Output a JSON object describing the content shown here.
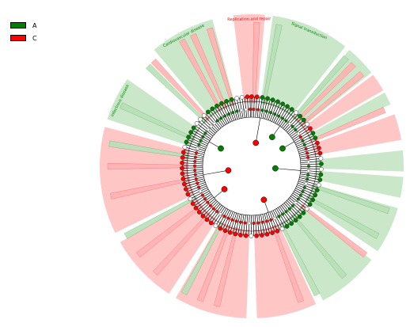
{
  "legend": [
    {
      "label": "A",
      "color": "#008000"
    },
    {
      "label": "C",
      "color": "#ff0000"
    }
  ],
  "colors": {
    "A": "#008000",
    "C": "#ff0000",
    "A_fill": "#b8dfb8",
    "C_fill": "#ffb3b3"
  },
  "sectors": [
    {
      "group": "C",
      "start": -7,
      "end": 5,
      "label": "Replication and repair"
    },
    {
      "group": "A",
      "start": 8,
      "end": 38,
      "label": "Signal transduction"
    },
    {
      "group": "A",
      "start": 40,
      "end": 52,
      "label": ""
    },
    {
      "group": "C",
      "start": 53,
      "end": 60,
      "label": ""
    },
    {
      "group": "A",
      "start": 61,
      "end": 66,
      "label": ""
    },
    {
      "group": "C",
      "start": 70,
      "end": 80,
      "label": ""
    },
    {
      "group": "A",
      "start": 84,
      "end": 92,
      "label": ""
    },
    {
      "group": "A",
      "start": 94,
      "end": 102,
      "label": ""
    },
    {
      "group": "A",
      "start": 106,
      "end": 124,
      "label": ""
    },
    {
      "group": "A",
      "start": 128,
      "end": 152,
      "label": ""
    },
    {
      "group": "C",
      "start": 155,
      "end": 178,
      "label": ""
    },
    {
      "group": "C",
      "start": 182,
      "end": 210,
      "label": ""
    },
    {
      "group": "C",
      "start": 213,
      "end": 240,
      "label": ""
    },
    {
      "group": "C",
      "start": 244,
      "end": 285,
      "label": ""
    },
    {
      "group": "A",
      "start": 288,
      "end": 305,
      "label": "Infectious disease"
    },
    {
      "group": "A",
      "start": 320,
      "end": 345,
      "label": "Cardiovascular disease"
    }
  ],
  "rays": [
    {
      "group": "C",
      "angle": 331
    },
    {
      "group": "C",
      "angle": 336
    },
    {
      "group": "C",
      "angle": 343
    },
    {
      "group": "A",
      "angle": 314
    },
    {
      "group": "C",
      "angle": 317
    },
    {
      "group": "C",
      "angle": 45
    },
    {
      "group": "C",
      "angle": 50
    },
    {
      "group": "A",
      "angle": 41
    },
    {
      "group": "C",
      "angle": 67
    },
    {
      "group": "A",
      "angle": 108
    },
    {
      "group": "A",
      "angle": 119
    },
    {
      "group": "C",
      "angle": 128
    },
    {
      "group": "A",
      "angle": 140
    },
    {
      "group": "A",
      "angle": 153
    },
    {
      "group": "C",
      "angle": 160
    },
    {
      "group": "C",
      "angle": 194
    },
    {
      "group": "C",
      "angle": 201
    },
    {
      "group": "A",
      "angle": 208
    },
    {
      "group": "C",
      "angle": 222
    },
    {
      "group": "C",
      "angle": 232
    },
    {
      "group": "A",
      "angle": 241
    },
    {
      "group": "C",
      "angle": 258
    },
    {
      "group": "C",
      "angle": 270
    },
    {
      "group": "A",
      "angle": 279
    },
    {
      "group": "A",
      "angle": 295
    },
    {
      "group": "A",
      "angle": 11
    },
    {
      "group": "C",
      "angle": 2
    }
  ],
  "hub_nodes": [
    {
      "group": "A",
      "angle": 300,
      "level": 1
    },
    {
      "group": "A",
      "angle": 60,
      "level": 1
    },
    {
      "group": "A",
      "angle": 35,
      "level": 1
    },
    {
      "group": "C",
      "angle": 230,
      "level": 1
    },
    {
      "group": "C",
      "angle": 160,
      "level": 1
    },
    {
      "group": "C",
      "angle": 10,
      "level": 2
    },
    {
      "group": "A",
      "angle": 95,
      "level": 2
    },
    {
      "group": "C",
      "angle": 260,
      "level": 2
    }
  ]
}
